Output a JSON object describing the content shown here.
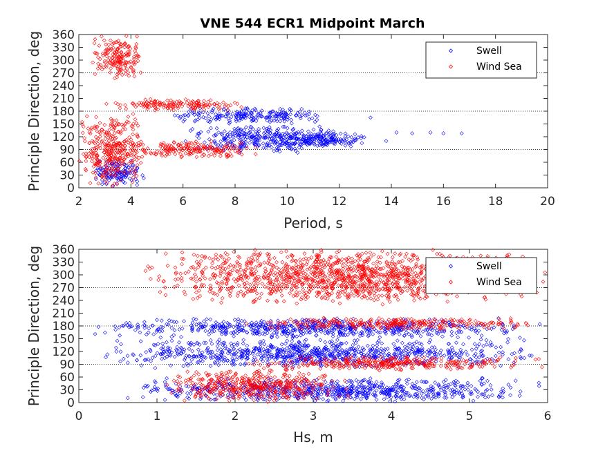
{
  "title": "VNE 544 ECR1 Midpoint March",
  "colors": {
    "swell": "#0000ff",
    "wind_sea": "#ff0000",
    "axis": "#262626",
    "ref_line": "#000000"
  },
  "chart_data": [
    {
      "type": "scatter",
      "title": "VNE 544 ECR1 Midpoint March",
      "xlabel": "Period, s",
      "ylabel": "Principle Direction, deg",
      "xlim": [
        2,
        20
      ],
      "ylim": [
        0,
        360
      ],
      "xticks": [
        "2",
        "4",
        "6",
        "8",
        "10",
        "12",
        "14",
        "16",
        "18",
        "20"
      ],
      "yticks": [
        "0",
        "30",
        "60",
        "90",
        "120",
        "150",
        "180",
        "210",
        "240",
        "270",
        "300",
        "330",
        "360"
      ],
      "reference_lines_y": [
        90,
        180,
        270
      ],
      "legend": {
        "position": "top-right",
        "entries": [
          "Swell",
          "Wind Sea"
        ]
      },
      "series": [
        {
          "name": "Swell",
          "marker": "diamond",
          "clusters": [
            {
              "x_range": [
                5.5,
                11.5
              ],
              "y_range": [
                150,
                190
              ]
            },
            {
              "x_range": [
                6,
                12.5
              ],
              "y_range": [
                80,
                150
              ]
            },
            {
              "x_range": [
                9.5,
                13.5
              ],
              "y_range": [
                95,
                130
              ]
            },
            {
              "x_range": [
                2.5,
                4.5
              ],
              "y_range": [
                0,
                70
              ]
            }
          ],
          "outliers": [
            [
              13.2,
              165
            ],
            [
              14.2,
              130
            ],
            [
              14.8,
              128
            ],
            [
              15.5,
              130
            ],
            [
              16.0,
              128
            ],
            [
              16.7,
              128
            ],
            [
              13.8,
              110
            ]
          ]
        },
        {
          "name": "Wind Sea",
          "marker": "diamond",
          "clusters": [
            {
              "x_range": [
                2.5,
                4.5
              ],
              "y_range": [
                255,
                360
              ]
            },
            {
              "x_range": [
                3,
                8.5
              ],
              "y_range": [
                180,
                210
              ]
            },
            {
              "x_range": [
                3.5,
                9
              ],
              "y_range": [
                70,
                110
              ]
            },
            {
              "x_range": [
                2,
                4.5
              ],
              "y_range": [
                0,
                180
              ]
            }
          ]
        }
      ]
    },
    {
      "type": "scatter",
      "xlabel": "Hs, m",
      "ylabel": "Principle Direction, deg",
      "xlim": [
        0,
        6
      ],
      "ylim": [
        0,
        360
      ],
      "xticks": [
        "0",
        "1",
        "2",
        "3",
        "4",
        "5",
        "6"
      ],
      "yticks": [
        "0",
        "30",
        "60",
        "90",
        "120",
        "150",
        "180",
        "210",
        "240",
        "270",
        "300",
        "330",
        "360"
      ],
      "reference_lines_y": [
        90,
        180,
        270
      ],
      "legend": {
        "position": "top-right",
        "entries": [
          "Swell",
          "Wind Sea"
        ]
      },
      "series": [
        {
          "name": "Swell",
          "marker": "diamond",
          "clusters": [
            {
              "x_range": [
                0.1,
                6
              ],
              "y_range": [
                150,
                200
              ]
            },
            {
              "x_range": [
                0.1,
                6
              ],
              "y_range": [
                80,
                150
              ]
            },
            {
              "x_range": [
                0.5,
                6
              ],
              "y_range": [
                0,
                60
              ]
            }
          ]
        },
        {
          "name": "Wind Sea",
          "marker": "diamond",
          "clusters": [
            {
              "x_range": [
                0.8,
                6
              ],
              "y_range": [
                230,
                360
              ]
            },
            {
              "x_range": [
                2,
                6
              ],
              "y_range": [
                170,
                200
              ]
            },
            {
              "x_range": [
                2,
                6
              ],
              "y_range": [
                75,
                110
              ]
            },
            {
              "x_range": [
                1,
                3.5
              ],
              "y_range": [
                0,
                80
              ]
            }
          ]
        }
      ]
    }
  ]
}
